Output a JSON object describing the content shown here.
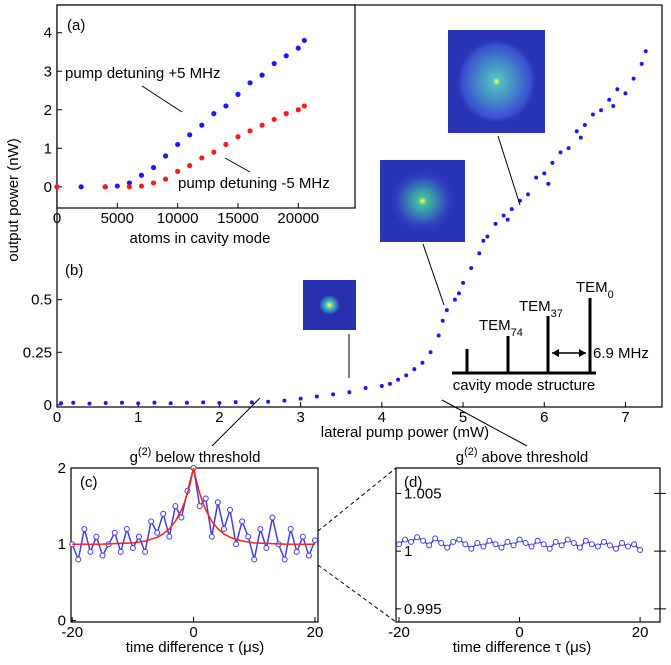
{
  "chart_data": [
    {
      "type": "scatter",
      "panel": "(a)",
      "x_label": "atoms in cavity mode",
      "xlim": [
        0,
        24700
      ],
      "ylim": [
        -0.55,
        4.72
      ],
      "xticks": [
        0,
        5000,
        10000,
        15000,
        20000
      ],
      "yticks": [
        0,
        1,
        2,
        3,
        4
      ],
      "series": [
        {
          "name": "pump detuning +5 MHz",
          "color": "#1a1aff",
          "x": [
            0,
            2000,
            4000,
            5000,
            6000,
            7000,
            8000,
            9000,
            10000,
            11000,
            12000,
            13000,
            14000,
            15000,
            16000,
            17000,
            18000,
            19000,
            20000,
            20500
          ],
          "values": [
            0,
            0,
            0,
            0.02,
            0.1,
            0.3,
            0.5,
            0.8,
            1.1,
            1.35,
            1.6,
            1.9,
            2.1,
            2.4,
            2.7,
            2.9,
            3.2,
            3.4,
            3.6,
            3.8
          ]
        },
        {
          "name": "pump detuning -5 MHz",
          "color": "#ff1a1a",
          "x": [
            0,
            4000,
            6000,
            7000,
            8000,
            9000,
            10000,
            11000,
            12000,
            13000,
            14000,
            15000,
            16000,
            17000,
            18000,
            19000,
            20000,
            20500
          ],
          "values": [
            0,
            0,
            0,
            0.02,
            0.1,
            0.2,
            0.4,
            0.55,
            0.75,
            0.9,
            1.1,
            1.3,
            1.45,
            1.6,
            1.75,
            1.9,
            2.0,
            2.1
          ]
        }
      ]
    },
    {
      "type": "scatter",
      "panel": "(b)",
      "x_label": "lateral pump power (mW)",
      "y_label": "output power (nW)",
      "xlim": [
        0,
        7.45
      ],
      "ylim": [
        -0.01,
        1.9
      ],
      "xticks": [
        0,
        1,
        2,
        3,
        4,
        5,
        6,
        7
      ],
      "yticks": [
        0,
        0.25,
        0.5
      ],
      "series": [
        {
          "color": "#1a1aee",
          "x": [
            0.05,
            0.2,
            0.4,
            0.6,
            0.8,
            1.0,
            1.2,
            1.4,
            1.6,
            1.8,
            2.0,
            2.2,
            2.4,
            2.6,
            2.8,
            3.0,
            3.2,
            3.4,
            3.6,
            3.8,
            4.0,
            4.1,
            4.2,
            4.3,
            4.4,
            4.5,
            4.6,
            4.7,
            4.75,
            4.8,
            4.9,
            4.95,
            5.0,
            5.1,
            5.2,
            5.25,
            5.3,
            5.4,
            5.5,
            5.55,
            5.6,
            5.7,
            5.8,
            5.9,
            6.0,
            6.05,
            6.1,
            6.2,
            6.3,
            6.4,
            6.45,
            6.5,
            6.6,
            6.7,
            6.8,
            6.85,
            6.9,
            7.0,
            7.1,
            7.2,
            7.25
          ],
          "values": [
            0.008,
            0.01,
            0.006,
            0.009,
            0.01,
            0.007,
            0.011,
            0.008,
            0.01,
            0.012,
            0.009,
            0.013,
            0.012,
            0.015,
            0.02,
            0.03,
            0.04,
            0.05,
            0.06,
            0.08,
            0.09,
            0.1,
            0.12,
            0.14,
            0.17,
            0.2,
            0.25,
            0.33,
            0.4,
            0.45,
            0.5,
            0.53,
            0.58,
            0.65,
            0.72,
            0.78,
            0.8,
            0.86,
            0.9,
            0.88,
            0.93,
            0.97,
            1.0,
            1.08,
            1.1,
            1.05,
            1.15,
            1.2,
            1.22,
            1.3,
            1.27,
            1.33,
            1.38,
            1.4,
            1.45,
            1.42,
            1.5,
            1.48,
            1.55,
            1.62,
            1.68
          ]
        }
      ],
      "mode_labels": [
        {
          "text": "TEM",
          "sub": "0"
        },
        {
          "text": "TEM",
          "sub": "37"
        },
        {
          "text": "TEM",
          "sub": "74"
        }
      ],
      "mode_spacing": "6.9 MHz",
      "mode_caption": "cavity mode structure"
    },
    {
      "type": "line",
      "panel": "(c)",
      "title": {
        "text": "g",
        "sup": "(2)",
        "rest": "below threshold"
      },
      "x_label": "time difference τ (μs)",
      "xlim": [
        -20.2,
        20.5
      ],
      "ylim": [
        -0.02,
        2.0
      ],
      "xticks": [
        -20,
        0,
        20
      ],
      "yticks": [
        0,
        1,
        2
      ],
      "series": [
        {
          "color": "#4040e0",
          "x": [
            -20,
            -19,
            -18,
            -17,
            -16,
            -15,
            -14,
            -13,
            -12,
            -11,
            -10,
            -9,
            -8,
            -7,
            -6,
            -5,
            -4,
            -3,
            -2,
            -1,
            0,
            1,
            2,
            3,
            4,
            5,
            6,
            7,
            8,
            9,
            10,
            11,
            12,
            13,
            14,
            15,
            16,
            17,
            18,
            19,
            20
          ],
          "values": [
            1.0,
            0.8,
            1.2,
            0.9,
            1.1,
            0.85,
            1.0,
            1.15,
            0.9,
            1.2,
            0.95,
            1.1,
            0.9,
            1.3,
            1.15,
            1.4,
            1.1,
            1.5,
            1.35,
            1.7,
            2.0,
            1.5,
            1.6,
            1.1,
            1.55,
            1.2,
            1.45,
            1.0,
            1.3,
            1.1,
            0.8,
            1.2,
            0.95,
            1.35,
            1.0,
            0.8,
            1.2,
            0.9,
            1.1,
            0.85,
            1.05
          ]
        },
        {
          "color": "#ff2020",
          "x": [
            -20,
            -15,
            -10,
            -8,
            -6,
            -5,
            -4,
            -3,
            -2,
            -1.5,
            -1,
            -0.5,
            0,
            0.5,
            1,
            1.5,
            2,
            3,
            4,
            5,
            6,
            8,
            10,
            15,
            20
          ],
          "values": [
            1.0,
            1.002,
            1.018,
            1.041,
            1.091,
            1.135,
            1.202,
            1.301,
            1.449,
            1.549,
            1.67,
            1.819,
            2.0,
            1.819,
            1.67,
            1.549,
            1.449,
            1.301,
            1.202,
            1.135,
            1.091,
            1.041,
            1.018,
            1.002,
            1.0
          ]
        }
      ]
    },
    {
      "type": "line",
      "panel": "(d)",
      "title": {
        "text": "g",
        "sup": "(2)",
        "rest": "above threshold"
      },
      "x_label": "time difference τ (μs)",
      "xlim": [
        -20.5,
        23.3
      ],
      "ylim": [
        0.99386,
        1.0072
      ],
      "xticks": [
        -20,
        0,
        20
      ],
      "yticks": [
        0.995,
        1,
        1.005
      ],
      "series": [
        {
          "color": "#4040e0",
          "x": [
            -20,
            -19,
            -18,
            -17,
            -16,
            -15,
            -14,
            -13,
            -12,
            -11,
            -10,
            -9,
            -8,
            -7,
            -6,
            -5,
            -4,
            -3,
            -2,
            -1,
            0,
            1,
            2,
            3,
            4,
            5,
            6,
            7,
            8,
            9,
            10,
            11,
            12,
            13,
            14,
            15,
            16,
            17,
            18,
            19,
            20
          ],
          "values": [
            1.0006,
            1.001,
            1.0008,
            1.0012,
            1.0009,
            1.0005,
            1.0011,
            1.0007,
            1.0003,
            1.0008,
            1.001,
            1.0006,
            1.0002,
            1.0007,
            1.0004,
            1.0009,
            1.0006,
            1.0003,
            1.0008,
            1.0005,
            1.001,
            1.0007,
            1.0004,
            1.0009,
            1.0006,
            1.0002,
            1.0008,
            1.0005,
            1.001,
            1.0007,
            1.0003,
            1.0009,
            1.0006,
            1.0004,
            1.0008,
            1.0005,
            1.0002,
            1.0007,
            1.0004,
            1.0006,
            1.0001
          ]
        }
      ]
    }
  ]
}
